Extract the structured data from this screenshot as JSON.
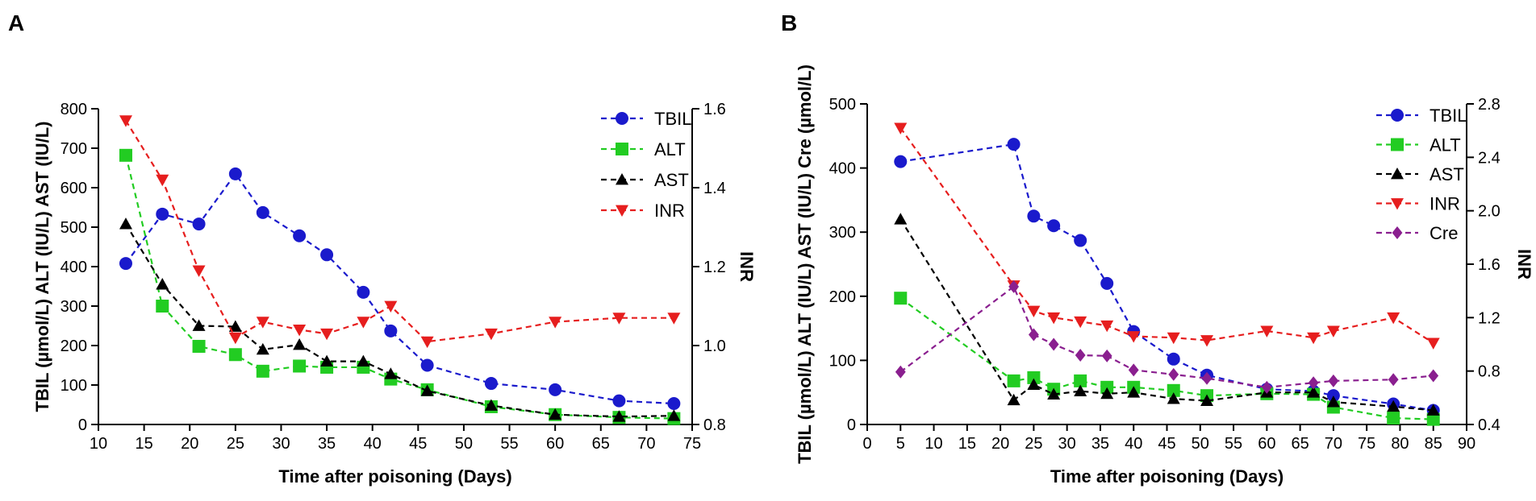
{
  "chart_data": [
    {
      "panel": "A",
      "type": "line",
      "xlabel": "Time after poisoning (Days)",
      "ylabel": "TBIL (µmol/L)  ALT (IU/L)  AST (IU/L)",
      "y2label": "INR",
      "xlim": [
        10,
        75
      ],
      "xticks": [
        10,
        15,
        20,
        25,
        30,
        35,
        40,
        45,
        50,
        55,
        60,
        65,
        70,
        75
      ],
      "ylim": [
        0,
        800
      ],
      "yticks": [
        0,
        100,
        200,
        300,
        400,
        500,
        600,
        700,
        800
      ],
      "y2lim": [
        0.8,
        1.6
      ],
      "y2ticks": [
        "0.8",
        "1.0",
        "1.2",
        "1.4",
        "1.6"
      ],
      "series": [
        {
          "name": "TBIL",
          "axis": "left",
          "color": "#1a1acc",
          "marker": "circle",
          "x": [
            13,
            17,
            21,
            25,
            28,
            32,
            35,
            39,
            42,
            46,
            53,
            60,
            67,
            73
          ],
          "values": [
            408,
            533,
            508,
            635,
            537,
            478,
            430,
            335,
            237,
            150,
            104,
            88,
            60,
            53
          ]
        },
        {
          "name": "ALT",
          "axis": "left",
          "color": "#22cc22",
          "marker": "square",
          "x": [
            13,
            17,
            21,
            25,
            28,
            32,
            35,
            39,
            42,
            46,
            53,
            60,
            67,
            73
          ],
          "values": [
            682,
            300,
            198,
            177,
            135,
            148,
            145,
            145,
            115,
            88,
            45,
            25,
            18,
            15
          ]
        },
        {
          "name": "AST",
          "axis": "left",
          "color": "#000000",
          "marker": "triangle-up",
          "x": [
            13,
            17,
            21,
            25,
            28,
            32,
            35,
            39,
            42,
            46,
            53,
            60,
            67,
            73
          ],
          "values": [
            508,
            355,
            250,
            248,
            190,
            202,
            160,
            160,
            128,
            85,
            48,
            25,
            20,
            22
          ]
        },
        {
          "name": "INR",
          "axis": "right",
          "color": "#e61e1e",
          "marker": "triangle-down",
          "x": [
            13,
            17,
            21,
            25,
            28,
            32,
            35,
            39,
            42,
            46,
            53,
            60,
            67,
            73
          ],
          "values": [
            1.57,
            1.42,
            1.19,
            1.02,
            1.06,
            1.04,
            1.03,
            1.06,
            1.1,
            1.01,
            1.03,
            1.06,
            1.07,
            1.07
          ]
        }
      ]
    },
    {
      "panel": "B",
      "type": "line",
      "xlabel": "Time after poisoning (Days)",
      "ylabel": "TBIL (µmol/L)  ALT (IU/L)  AST (IU/L)  Cre (µmol/L)",
      "y2label": "INR",
      "xlim": [
        0,
        90
      ],
      "xticks": [
        0,
        5,
        10,
        15,
        20,
        25,
        30,
        35,
        40,
        45,
        50,
        55,
        60,
        65,
        70,
        75,
        80,
        85,
        90
      ],
      "ylim": [
        0,
        500
      ],
      "yticks": [
        0,
        100,
        200,
        300,
        400,
        500
      ],
      "y2lim": [
        0.4,
        2.8
      ],
      "y2ticks": [
        "0.4",
        "0.8",
        "1.2",
        "1.6",
        "2.0",
        "2.4",
        "2.8"
      ],
      "series": [
        {
          "name": "TBIL",
          "axis": "left",
          "color": "#1a1acc",
          "marker": "circle",
          "x": [
            5,
            22,
            25,
            28,
            32,
            36,
            40,
            46,
            51,
            60,
            67,
            70,
            79,
            85
          ],
          "values": [
            410,
            437,
            325,
            310,
            287,
            220,
            145,
            102,
            77,
            55,
            52,
            45,
            32,
            22
          ]
        },
        {
          "name": "ALT",
          "axis": "left",
          "color": "#22cc22",
          "marker": "square",
          "x": [
            5,
            22,
            25,
            28,
            32,
            36,
            40,
            46,
            51,
            60,
            67,
            70,
            79,
            85
          ],
          "values": [
            197,
            68,
            73,
            55,
            68,
            58,
            58,
            53,
            45,
            48,
            47,
            27,
            10,
            8
          ]
        },
        {
          "name": "AST",
          "axis": "left",
          "color": "#000000",
          "marker": "triangle-up",
          "x": [
            5,
            22,
            25,
            28,
            32,
            36,
            40,
            46,
            51,
            60,
            67,
            70,
            79,
            85
          ],
          "values": [
            320,
            38,
            62,
            47,
            52,
            48,
            50,
            40,
            37,
            50,
            50,
            35,
            28,
            22
          ]
        },
        {
          "name": "INR",
          "axis": "right",
          "color": "#e61e1e",
          "marker": "triangle-down",
          "x": [
            5,
            22,
            25,
            28,
            32,
            36,
            40,
            46,
            51,
            60,
            67,
            70,
            79,
            85
          ],
          "values": [
            2.62,
            1.44,
            1.25,
            1.2,
            1.17,
            1.14,
            1.06,
            1.05,
            1.03,
            1.1,
            1.05,
            1.1,
            1.2,
            1.01
          ]
        },
        {
          "name": "Cre",
          "axis": "left",
          "color": "#8a1f8f",
          "marker": "diamond",
          "x": [
            5,
            22,
            25,
            28,
            32,
            36,
            40,
            46,
            51,
            60,
            67,
            70,
            79,
            85
          ],
          "values": [
            82,
            215,
            140,
            125,
            108,
            107,
            85,
            78,
            72,
            58,
            65,
            68,
            70,
            76
          ]
        }
      ]
    }
  ]
}
